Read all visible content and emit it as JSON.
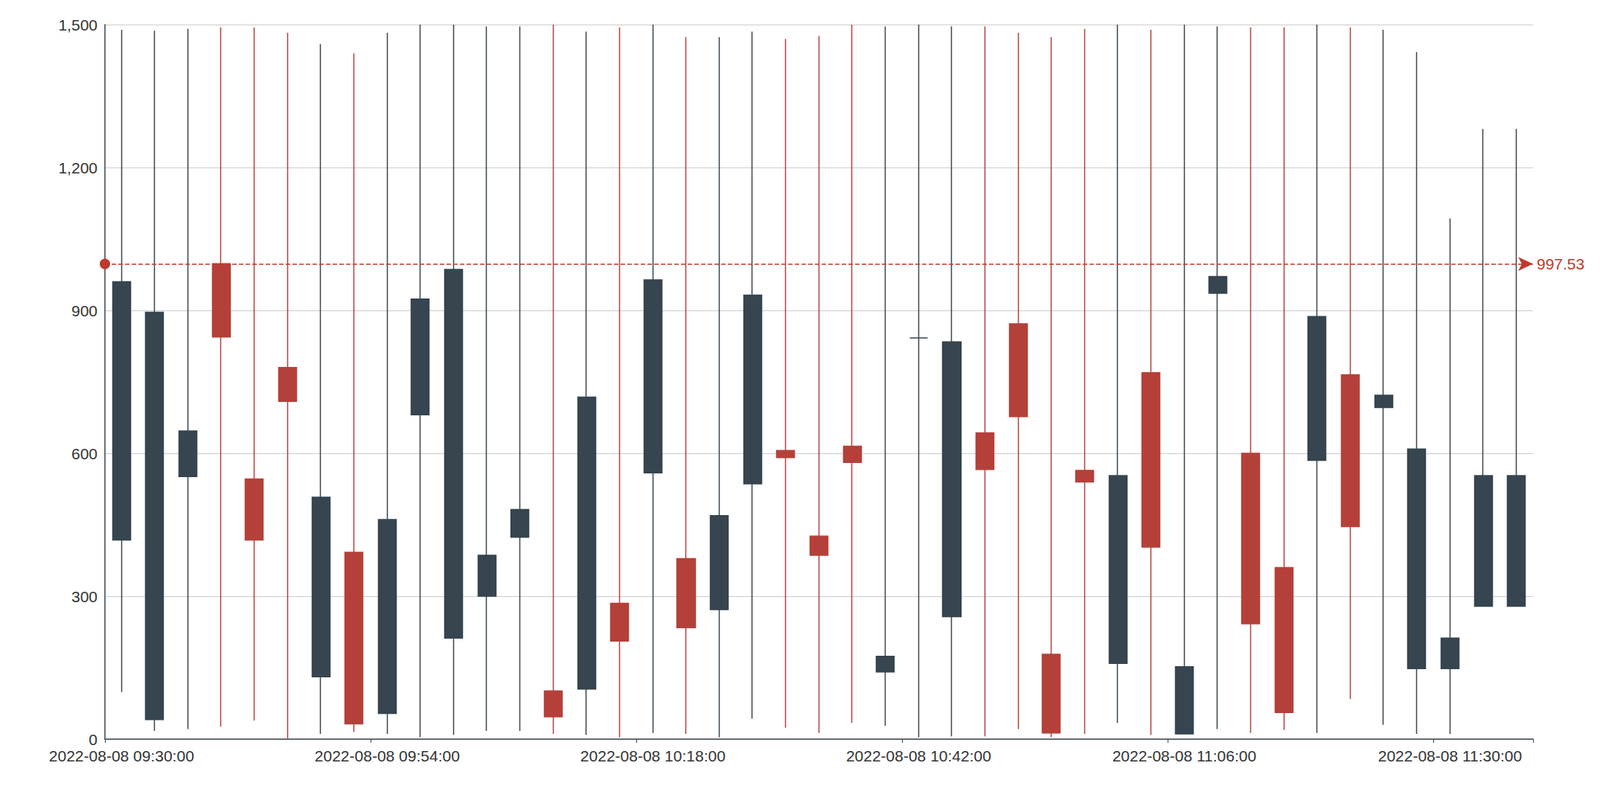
{
  "chart_data": {
    "type": "candlestick",
    "categories": [
      "2022-08-08 09:30:00",
      null,
      null,
      null,
      null,
      null,
      null,
      null,
      "2022-08-08 09:54:00",
      null,
      null,
      null,
      null,
      null,
      null,
      null,
      "2022-08-08 10:18:00",
      null,
      null,
      null,
      null,
      null,
      null,
      null,
      "2022-08-08 10:42:00",
      null,
      null,
      null,
      null,
      null,
      null,
      null,
      "2022-08-08 11:06:00",
      null,
      null,
      null,
      null,
      null,
      null,
      null,
      "2022-08-08 11:30:00",
      null,
      null
    ],
    "open": [
      418,
      41,
      551,
      998,
      546,
      780,
      131,
      392,
      54,
      681,
      212,
      300,
      424,
      101,
      105,
      285,
      559,
      379,
      272,
      536,
      606,
      426,
      615,
      141,
      842,
      257,
      643,
      872,
      178,
      564,
      159,
      769,
      11,
      936,
      600,
      360,
      585,
      765,
      696,
      148,
      148,
      279,
      279
    ],
    "close": [
      960,
      896,
      647,
      844,
      418,
      709,
      508,
      32,
      461,
      924,
      986,
      386,
      482,
      47,
      718,
      206,
      964,
      234,
      469,
      932,
      591,
      386,
      581,
      174,
      842,
      834,
      566,
      677,
      13,
      540,
      553,
      403,
      152,
      971,
      242,
      56,
      887,
      446,
      722,
      609,
      212,
      553,
      553
    ],
    "low": [
      99,
      17,
      21,
      26,
      39,
      0,
      11,
      15,
      11,
      4,
      9,
      17,
      17,
      11,
      9,
      4,
      13,
      11,
      4,
      43,
      24,
      13,
      34,
      28,
      4,
      6,
      6,
      21,
      4,
      11,
      34,
      9,
      11,
      21,
      13,
      19,
      13,
      84,
      30,
      11,
      11,
      279,
      279
    ],
    "high": [
      1489,
      1487,
      1491,
      1494,
      1494,
      1483,
      1459,
      1440,
      1483,
      1500,
      1500,
      1496,
      1496,
      1500,
      1485,
      1494,
      1500,
      1474,
      1474,
      1485,
      1470,
      1476,
      1500,
      1496,
      1500,
      1496,
      1496,
      1483,
      1474,
      1491,
      1500,
      1489,
      1500,
      1496,
      1494,
      1494,
      1500,
      1494,
      1489,
      1442,
      1093,
      1281,
      1281
    ],
    "colors": [
      "#36454f",
      "#36454f",
      "#36454f",
      "#b5403a",
      "#b5403a",
      "#b5403a",
      "#36454f",
      "#b5403a",
      "#36454f",
      "#36454f",
      "#36454f",
      "#36454f",
      "#36454f",
      "#b5403a",
      "#36454f",
      "#b5403a",
      "#36454f",
      "#b5403a",
      "#36454f",
      "#36454f",
      "#b5403a",
      "#b5403a",
      "#b5403a",
      "#36454f",
      "#36454f",
      "#36454f",
      "#b5403a",
      "#b5403a",
      "#b5403a",
      "#b5403a",
      "#36454f",
      "#b5403a",
      "#36454f",
      "#36454f",
      "#b5403a",
      "#b5403a",
      "#36454f",
      "#b5403a",
      "#36454f",
      "#36454f",
      "#36454f",
      "#36454f",
      "#36454f"
    ],
    "reference_line": 997.53,
    "reference_color": "#c0392b",
    "ylim": [
      0,
      1500
    ],
    "yticks": [
      0,
      300,
      600,
      900,
      {
        "value": 1200,
        "label": "1,200"
      },
      {
        "value": 1500,
        "label": "1,500"
      }
    ],
    "grid": true
  }
}
